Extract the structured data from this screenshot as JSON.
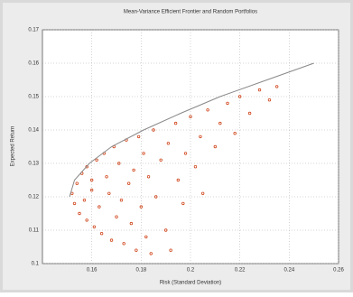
{
  "chart_data": {
    "type": "scatter",
    "title": "Mean-Variance Efficient Frontier and Random Portfolios",
    "xlabel": "Risk (Standard Deviation)",
    "ylabel": "Expected Return",
    "xlim": [
      0.14,
      0.26
    ],
    "xticks": [
      0.16,
      0.18,
      0.2,
      0.22,
      0.24,
      0.26
    ],
    "ylim": [
      0.1,
      0.17
    ],
    "yticks": [
      0.1,
      0.11,
      0.12,
      0.13,
      0.14,
      0.15,
      0.16,
      0.17
    ],
    "grid": true,
    "points": {
      "color": "#d0451b",
      "x": [
        0.152,
        0.153,
        0.154,
        0.155,
        0.156,
        0.157,
        0.158,
        0.158,
        0.16,
        0.16,
        0.161,
        0.162,
        0.163,
        0.164,
        0.165,
        0.166,
        0.167,
        0.168,
        0.169,
        0.17,
        0.171,
        0.172,
        0.173,
        0.174,
        0.175,
        0.176,
        0.177,
        0.178,
        0.179,
        0.18,
        0.181,
        0.182,
        0.183,
        0.184,
        0.185,
        0.186,
        0.188,
        0.19,
        0.191,
        0.192,
        0.194,
        0.195,
        0.197,
        0.198,
        0.2,
        0.202,
        0.204,
        0.205,
        0.207,
        0.21,
        0.212,
        0.215,
        0.218,
        0.22,
        0.224,
        0.228,
        0.232,
        0.235
      ],
      "y": [
        0.121,
        0.118,
        0.124,
        0.115,
        0.127,
        0.119,
        0.113,
        0.129,
        0.122,
        0.125,
        0.111,
        0.131,
        0.117,
        0.109,
        0.133,
        0.126,
        0.121,
        0.107,
        0.135,
        0.114,
        0.13,
        0.119,
        0.106,
        0.137,
        0.124,
        0.112,
        0.128,
        0.104,
        0.138,
        0.117,
        0.133,
        0.108,
        0.126,
        0.103,
        0.14,
        0.12,
        0.131,
        0.11,
        0.136,
        0.104,
        0.142,
        0.125,
        0.118,
        0.133,
        0.144,
        0.129,
        0.138,
        0.121,
        0.146,
        0.135,
        0.142,
        0.148,
        0.139,
        0.15,
        0.145,
        0.152,
        0.149,
        0.153
      ]
    },
    "frontier": {
      "color": "#888888",
      "x": [
        0.151,
        0.153,
        0.159,
        0.168,
        0.181,
        0.196,
        0.212,
        0.231,
        0.25
      ],
      "y": [
        0.12,
        0.125,
        0.13,
        0.135,
        0.14,
        0.145,
        0.15,
        0.155,
        0.16
      ]
    }
  }
}
